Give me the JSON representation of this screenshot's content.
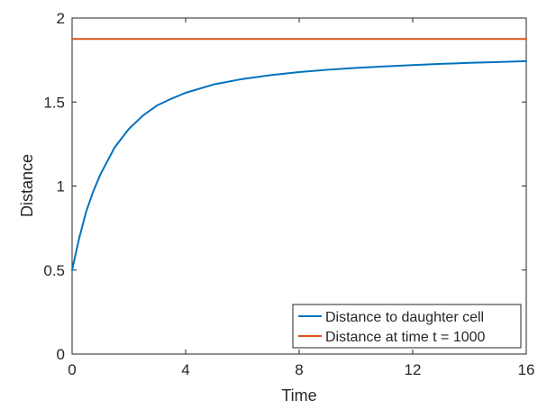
{
  "chart_data": {
    "type": "line",
    "xlabel": "Time",
    "ylabel": "Distance",
    "xlim": [
      0,
      16
    ],
    "ylim": [
      0,
      2
    ],
    "xticks": [
      "0",
      "4",
      "8",
      "12",
      "16"
    ],
    "yticks": [
      "0",
      "0.5",
      "1",
      "1.5",
      "2"
    ],
    "grid": false,
    "legend_position": "bottom-right",
    "series": [
      {
        "name": "Distance to daughter cell",
        "color": "#0072BD",
        "x": [
          0,
          0.25,
          0.5,
          0.75,
          1,
          1.5,
          2,
          2.5,
          3,
          3.5,
          4,
          5,
          6,
          7,
          8,
          9,
          10,
          11,
          12,
          13,
          14,
          15,
          16
        ],
        "y": [
          0.5,
          0.69,
          0.85,
          0.97,
          1.07,
          1.23,
          1.34,
          1.42,
          1.48,
          1.52,
          1.555,
          1.605,
          1.637,
          1.66,
          1.678,
          1.692,
          1.703,
          1.712,
          1.72,
          1.727,
          1.733,
          1.738,
          1.743
        ]
      },
      {
        "name": "Distance at time t = 1000",
        "color": "#D95319",
        "x": [
          0,
          16
        ],
        "y": [
          1.875,
          1.875
        ]
      }
    ]
  }
}
